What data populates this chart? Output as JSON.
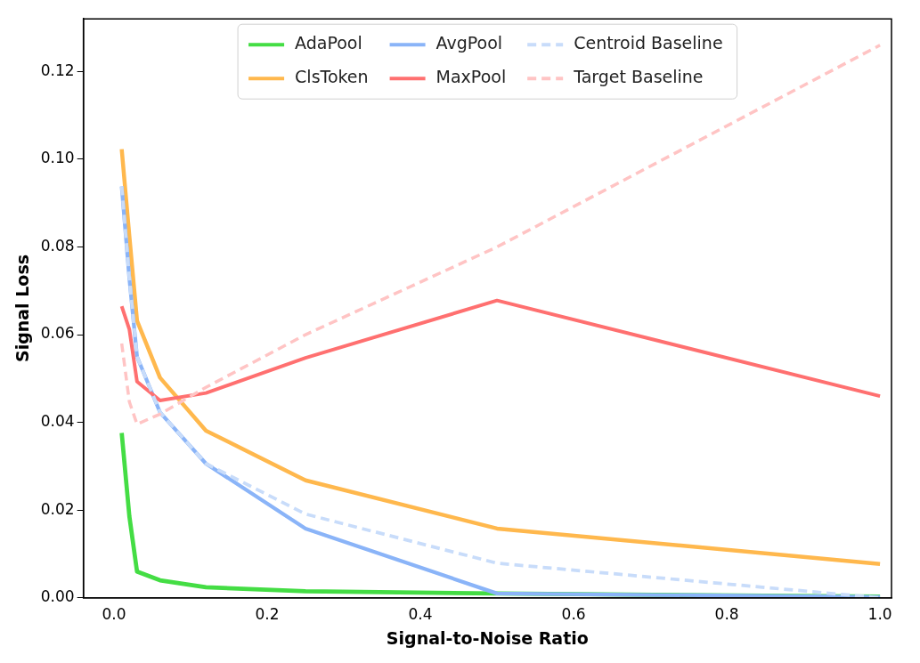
{
  "chart_data": {
    "type": "line",
    "xlabel": "Signal-to-Noise Ratio",
    "ylabel": "Signal Loss",
    "x": [
      0.01,
      0.02,
      0.03,
      0.06,
      0.12,
      0.25,
      0.5,
      1.0
    ],
    "series": [
      {
        "name": "AdaPool",
        "color": "#44dd44",
        "values": [
          0.0376,
          0.0186,
          0.006,
          0.004,
          0.0024,
          0.0015,
          0.001,
          0.0003
        ]
      },
      {
        "name": "ClsToken",
        "color": "#ffb84d",
        "values": [
          0.1023,
          0.0825,
          0.0632,
          0.0502,
          0.0381,
          0.0268,
          0.0158,
          0.0077
        ]
      },
      {
        "name": "AvgPool",
        "color": "#8ab4f8",
        "values": [
          0.0938,
          0.0728,
          0.055,
          0.0423,
          0.0306,
          0.0158,
          0.001,
          0.0002
        ]
      },
      {
        "name": "MaxPool",
        "color": "#ff7070",
        "values": [
          0.0665,
          0.0612,
          0.0493,
          0.045,
          0.0467,
          0.0547,
          0.0678,
          0.046
        ]
      },
      {
        "name": "Centroid Baseline",
        "color": "#c8dcfa",
        "line_style": "dashed",
        "values": [
          0.0938,
          0.0728,
          0.055,
          0.0423,
          0.0306,
          0.0191,
          0.0079,
          0.0
        ]
      },
      {
        "name": "Target Baseline",
        "color": "#ffc4c4",
        "line_style": "dashed",
        "values": [
          0.058,
          0.0447,
          0.0396,
          0.0419,
          0.048,
          0.06,
          0.08,
          0.126
        ]
      }
    ],
    "xlim": [
      -0.04,
      1.015
    ],
    "xticks": [
      {
        "value": 0,
        "label": "0.0"
      },
      0.2,
      0.4,
      0.6,
      0.8,
      {
        "value": 1,
        "label": "1.0"
      }
    ],
    "ylim": [
      0,
      0.132
    ],
    "yticks": [
      {
        "value": 0,
        "label": "0.00"
      },
      {
        "value": 0.02,
        "label": "0.02"
      },
      {
        "value": 0.04,
        "label": "0.04"
      },
      {
        "value": 0.06,
        "label": "0.06"
      },
      {
        "value": 0.08,
        "label": "0.08"
      },
      {
        "value": 0.1,
        "label": "0.10"
      },
      {
        "value": 0.12,
        "label": "0.12"
      }
    ],
    "legend": "top",
    "grid": false,
    "marker": "none"
  }
}
